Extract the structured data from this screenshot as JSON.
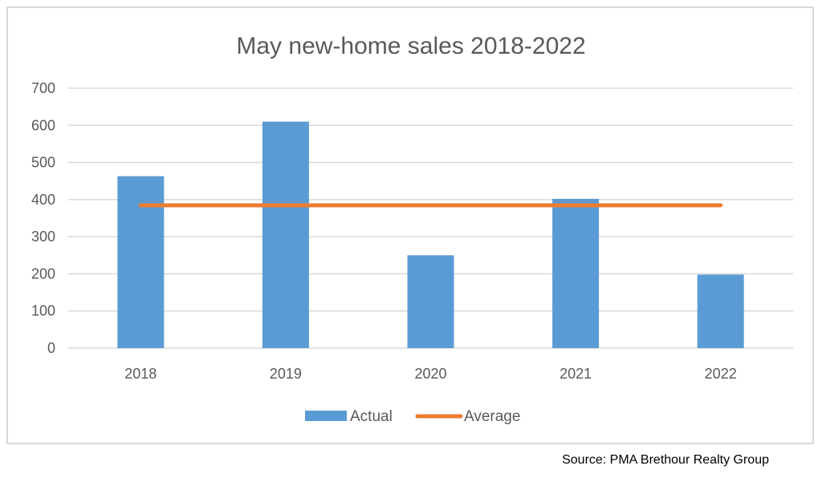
{
  "chart_data": {
    "type": "bar",
    "title": "May new-home sales 2018-2022",
    "xlabel": "",
    "ylabel": "",
    "categories": [
      "2018",
      "2019",
      "2020",
      "2021",
      "2022"
    ],
    "series": [
      {
        "name": "Actual",
        "type": "bar",
        "color": "#5b9bd5",
        "values": [
          463,
          610,
          250,
          402,
          198
        ]
      },
      {
        "name": "Average",
        "type": "line",
        "color": "#ed7d31",
        "values": [
          384.6,
          384.6,
          384.6,
          384.6,
          384.6
        ]
      }
    ],
    "ylim": [
      0,
      700
    ],
    "yticks": [
      0,
      100,
      200,
      300,
      400,
      500,
      600,
      700
    ],
    "grid": true,
    "legend": "bottom-center"
  },
  "source_note": "Source: PMA Brethour Realty Group"
}
